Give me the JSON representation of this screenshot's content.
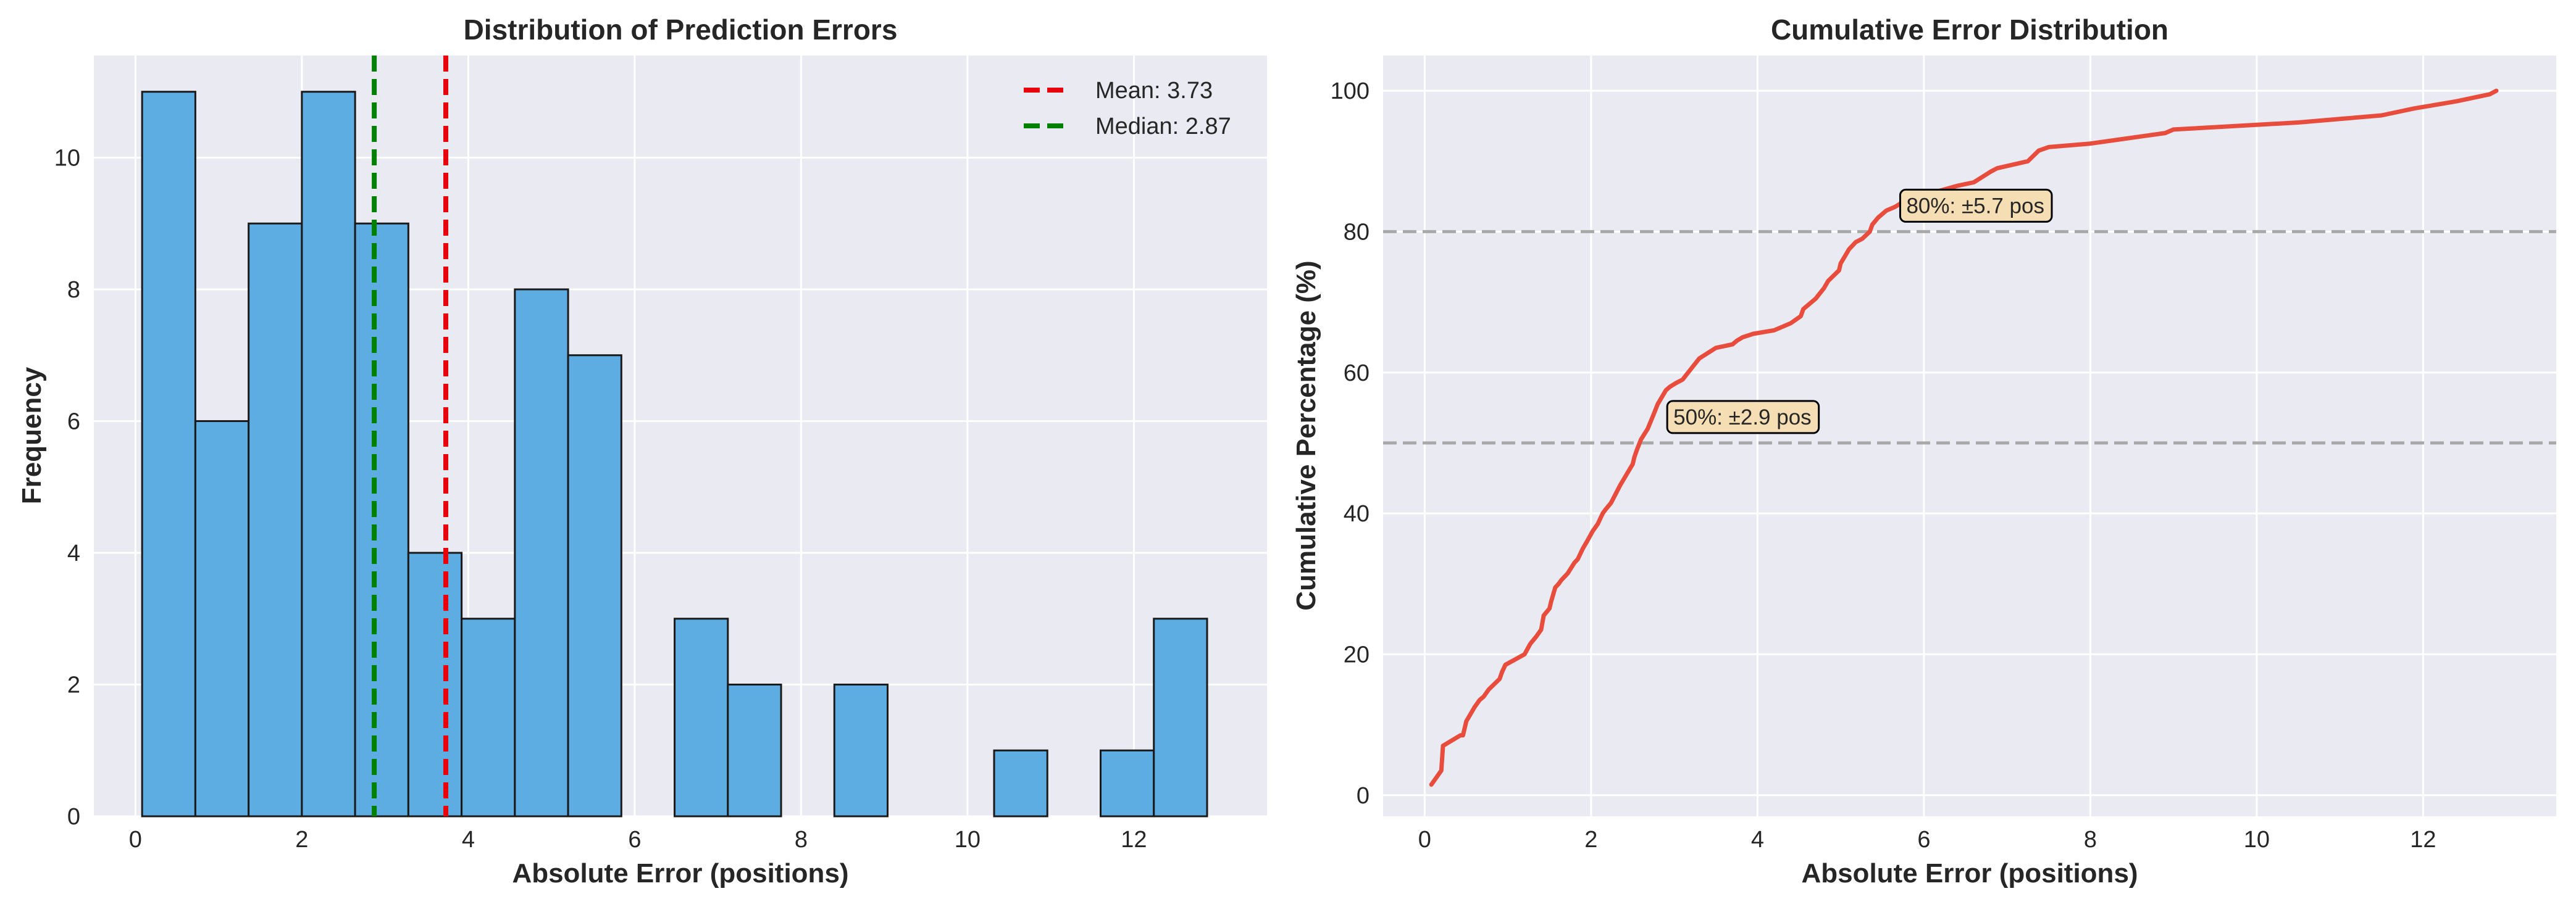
{
  "chart_data": [
    {
      "type": "bar",
      "title": "Distribution of Prediction Errors",
      "xlabel": "Absolute Error (positions)",
      "ylabel": "Frequency",
      "xlim": [
        -0.5,
        13.6
      ],
      "ylim": [
        0,
        11.55
      ],
      "xticks": [
        0,
        2,
        4,
        6,
        8,
        10,
        12
      ],
      "yticks": [
        0,
        2,
        4,
        6,
        8,
        10
      ],
      "grid": true,
      "bin_edges": [
        0.08,
        0.72,
        1.36,
        2.0,
        2.64,
        3.28,
        3.92,
        4.56,
        5.2,
        5.84,
        6.48,
        7.12,
        7.76,
        8.4,
        9.04,
        9.68,
        10.32,
        10.96,
        11.6,
        12.24,
        12.88
      ],
      "counts": [
        11,
        6,
        9,
        11,
        9,
        4,
        3,
        8,
        7,
        0,
        3,
        2,
        0,
        2,
        0,
        0,
        1,
        0,
        1,
        3
      ],
      "colors": {
        "bar": "#5dade2",
        "edge": "#1a1a1a",
        "mean": "#e8000b",
        "median": "#008000"
      },
      "reference_lines": [
        {
          "label": "Mean: 3.73",
          "value": 3.73,
          "color": "#e8000b",
          "style": "dashed"
        },
        {
          "label": "Median: 2.87",
          "value": 2.87,
          "color": "#008000",
          "style": "dashed"
        }
      ],
      "legend_position": "top-right"
    },
    {
      "type": "line",
      "title": "Cumulative Error Distribution",
      "xlabel": "Absolute Error (positions)",
      "ylabel": "Cumulative Percentage (%)",
      "xlim": [
        -0.5,
        13.6
      ],
      "ylim": [
        -3,
        105
      ],
      "xticks": [
        0,
        2,
        4,
        6,
        8,
        10,
        12
      ],
      "yticks": [
        0,
        20,
        40,
        60,
        80,
        100
      ],
      "grid": true,
      "line_color": "#e74c3c",
      "x": [
        0.08,
        0.2,
        0.22,
        0.43,
        0.46,
        0.5,
        0.55,
        0.6,
        0.66,
        0.71,
        0.77,
        0.9,
        0.93,
        0.97,
        1.2,
        1.27,
        1.34,
        1.4,
        1.43,
        1.5,
        1.52,
        1.57,
        1.61,
        1.64,
        1.68,
        1.72,
        1.8,
        1.84,
        1.9,
        1.95,
        2.02,
        2.08,
        2.12,
        2.14,
        2.17,
        2.24,
        2.35,
        2.45,
        2.5,
        2.52,
        2.55,
        2.6,
        2.68,
        2.75,
        2.8,
        2.85,
        2.9,
        2.95,
        3.02,
        3.1,
        3.2,
        3.3,
        3.5,
        3.7,
        3.75,
        3.82,
        3.95,
        4.2,
        4.4,
        4.52,
        4.55,
        4.7,
        4.8,
        4.85,
        4.98,
        5.0,
        5.05,
        5.1,
        5.18,
        5.26,
        5.35,
        5.38,
        5.45,
        5.55,
        5.65,
        5.72,
        5.8,
        5.95,
        6.1,
        6.25,
        6.4,
        6.6,
        6.8,
        6.88,
        7.25,
        7.38,
        7.5,
        8.0,
        8.6,
        8.9,
        9.0,
        10.5,
        11.0,
        11.5,
        11.9,
        12.4,
        12.8,
        12.88
      ],
      "y": [
        1.5,
        3.5,
        7.0,
        8.5,
        8.5,
        10.5,
        11.5,
        12.5,
        13.5,
        14.0,
        15.0,
        16.5,
        17.5,
        18.5,
        20.0,
        21.5,
        22.5,
        23.5,
        25.5,
        26.5,
        27.5,
        29.5,
        30.0,
        30.5,
        31.0,
        31.5,
        33.0,
        33.5,
        35.0,
        36.0,
        37.5,
        38.5,
        39.5,
        40.0,
        40.5,
        41.5,
        44.0,
        46.0,
        47.0,
        48.0,
        49.0,
        50.5,
        52.0,
        54.0,
        55.5,
        56.5,
        57.5,
        58.0,
        58.5,
        59.0,
        60.5,
        62.0,
        63.5,
        64.0,
        64.5,
        65.0,
        65.5,
        66.0,
        67.0,
        68.0,
        69.0,
        70.5,
        72.0,
        73.0,
        74.5,
        75.5,
        76.5,
        77.5,
        78.5,
        79.0,
        80.0,
        81.0,
        82.0,
        83.0,
        83.5,
        84.0,
        84.5,
        85.0,
        85.5,
        86.0,
        86.5,
        87.0,
        88.5,
        89.0,
        90.0,
        91.5,
        92.0,
        92.5,
        93.5,
        94.0,
        94.5,
        95.5,
        96.0,
        96.5,
        97.5,
        98.5,
        99.5,
        100.0
      ],
      "reference_lines": [
        {
          "axis": "y",
          "value": 80,
          "color": "#a9a9a9",
          "style": "dashed"
        },
        {
          "axis": "y",
          "value": 50,
          "color": "#a9a9a9",
          "style": "dashed"
        }
      ],
      "annotations": [
        {
          "text": "80%: ±5.7 pos",
          "x": 5.7,
          "y": 80
        },
        {
          "text": "50%: ±2.9 pos",
          "x": 2.9,
          "y": 50
        }
      ],
      "annotation_box_color": "#f5deb3"
    }
  ]
}
